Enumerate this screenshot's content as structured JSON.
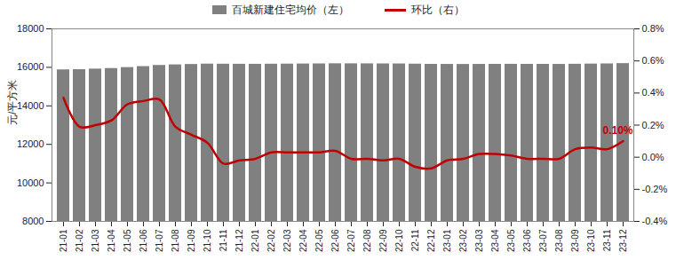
{
  "chart_data": {
    "type": "bar",
    "categories": [
      "21-01",
      "21-02",
      "21-03",
      "21-04",
      "21-05",
      "21-06",
      "21-07",
      "21-08",
      "21-09",
      "21-10",
      "21-11",
      "21-12",
      "22-01",
      "22-02",
      "22-03",
      "22-04",
      "22-05",
      "22-06",
      "22-07",
      "22-08",
      "22-09",
      "22-10",
      "22-11",
      "22-12",
      "23-01",
      "23-02",
      "23-03",
      "23-04",
      "23-05",
      "23-06",
      "23-07",
      "23-08",
      "23-09",
      "23-10",
      "23-11",
      "23-12"
    ],
    "series": [
      {
        "name": "百城新建住宅均价（左）",
        "type": "bar",
        "color": "#808080",
        "values": [
          15870,
          15880,
          15910,
          15940,
          15990,
          16040,
          16100,
          16130,
          16150,
          16170,
          16165,
          16162,
          16160,
          16165,
          16170,
          16175,
          16180,
          16187,
          16185,
          16183,
          16180,
          16178,
          16168,
          16157,
          16154,
          16152,
          16155,
          16158,
          16160,
          16158,
          16156,
          16154,
          16162,
          16172,
          16180,
          16196
        ]
      },
      {
        "name": "环比（右）",
        "type": "line",
        "axis": "y2",
        "color": "#c00000",
        "line_style": "solid",
        "values": [
          0.37,
          0.19,
          0.2,
          0.23,
          0.33,
          0.35,
          0.36,
          0.19,
          0.14,
          0.09,
          -0.04,
          -0.02,
          -0.01,
          0.03,
          0.03,
          0.03,
          0.03,
          0.04,
          -0.01,
          -0.01,
          -0.02,
          -0.01,
          -0.06,
          -0.07,
          -0.02,
          -0.01,
          0.02,
          0.02,
          0.01,
          -0.01,
          -0.01,
          -0.01,
          0.05,
          0.06,
          0.05,
          0.1
        ]
      }
    ],
    "ylabel": "元/平方米",
    "ylim": [
      8000,
      18000
    ],
    "yticks": [
      8000,
      10000,
      12000,
      14000,
      16000,
      18000
    ],
    "y2lim": [
      -0.4,
      0.8
    ],
    "y2ticks": [
      {
        "value": -0.4,
        "label": "-0.4%"
      },
      {
        "value": -0.2,
        "label": "-0.2%"
      },
      {
        "value": 0,
        "label": "0.0%"
      },
      {
        "value": 0.2,
        "label": "0.2%"
      },
      {
        "value": 0.4,
        "label": "0.4%"
      },
      {
        "value": 0.6,
        "label": "0.6%"
      },
      {
        "value": 0.8,
        "label": "0.8%"
      }
    ],
    "annotations": [
      {
        "text": "0.10%",
        "x": "23-12",
        "y": 0.1,
        "axis": "y2"
      }
    ],
    "legend": "top",
    "grid": false
  }
}
